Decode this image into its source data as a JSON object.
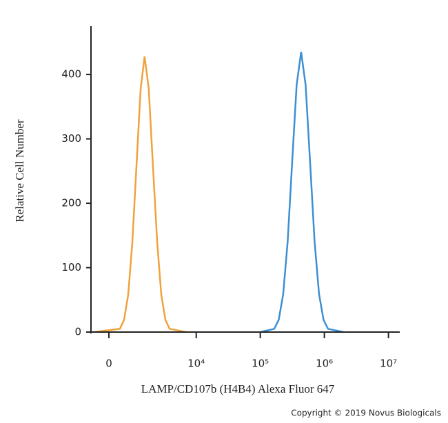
{
  "chart_data": {
    "type": "line",
    "x_label": "LAMP/CD107b (H4B4) Alexa Fluor 647",
    "y_label": "Relative Cell Number",
    "credit": "Copyright © 2019 Novus Biologicals",
    "xscale": "biexponential",
    "xlim": [
      -600,
      15000000
    ],
    "xticks": [
      0,
      {
        "value": 10000,
        "label": "10⁴"
      },
      {
        "value": 100000,
        "label": "10⁵"
      },
      {
        "value": 1000000,
        "label": "10⁶"
      },
      {
        "value": 10000000,
        "label": "10⁷"
      }
    ],
    "ylim": [
      0,
      475
    ],
    "yticks": [
      0,
      100,
      200,
      300,
      400
    ],
    "series": [
      {
        "color": "#f0a23c",
        "x": [
          -500,
          353,
          497,
          653,
          823,
          1011,
          1221,
          1446,
          1717,
          2021,
          2387,
          2786,
          3256,
          3793,
          7000
        ],
        "values": [
          0,
          5,
          19,
          58,
          139,
          260,
          378,
          428,
          378,
          260,
          139,
          58,
          19,
          5,
          0
        ]
      },
      {
        "color": "#3d8fd4",
        "x": [
          100000,
          165300,
          194000,
          228000,
          267500,
          314500,
          369300,
          434100,
          509800,
          598600,
          703400,
          826500,
          970000,
          1139700,
          2000000
        ],
        "values": [
          0,
          5,
          19,
          59,
          141,
          264,
          384,
          435,
          384,
          264,
          141,
          59,
          19,
          5,
          0
        ]
      }
    ]
  }
}
